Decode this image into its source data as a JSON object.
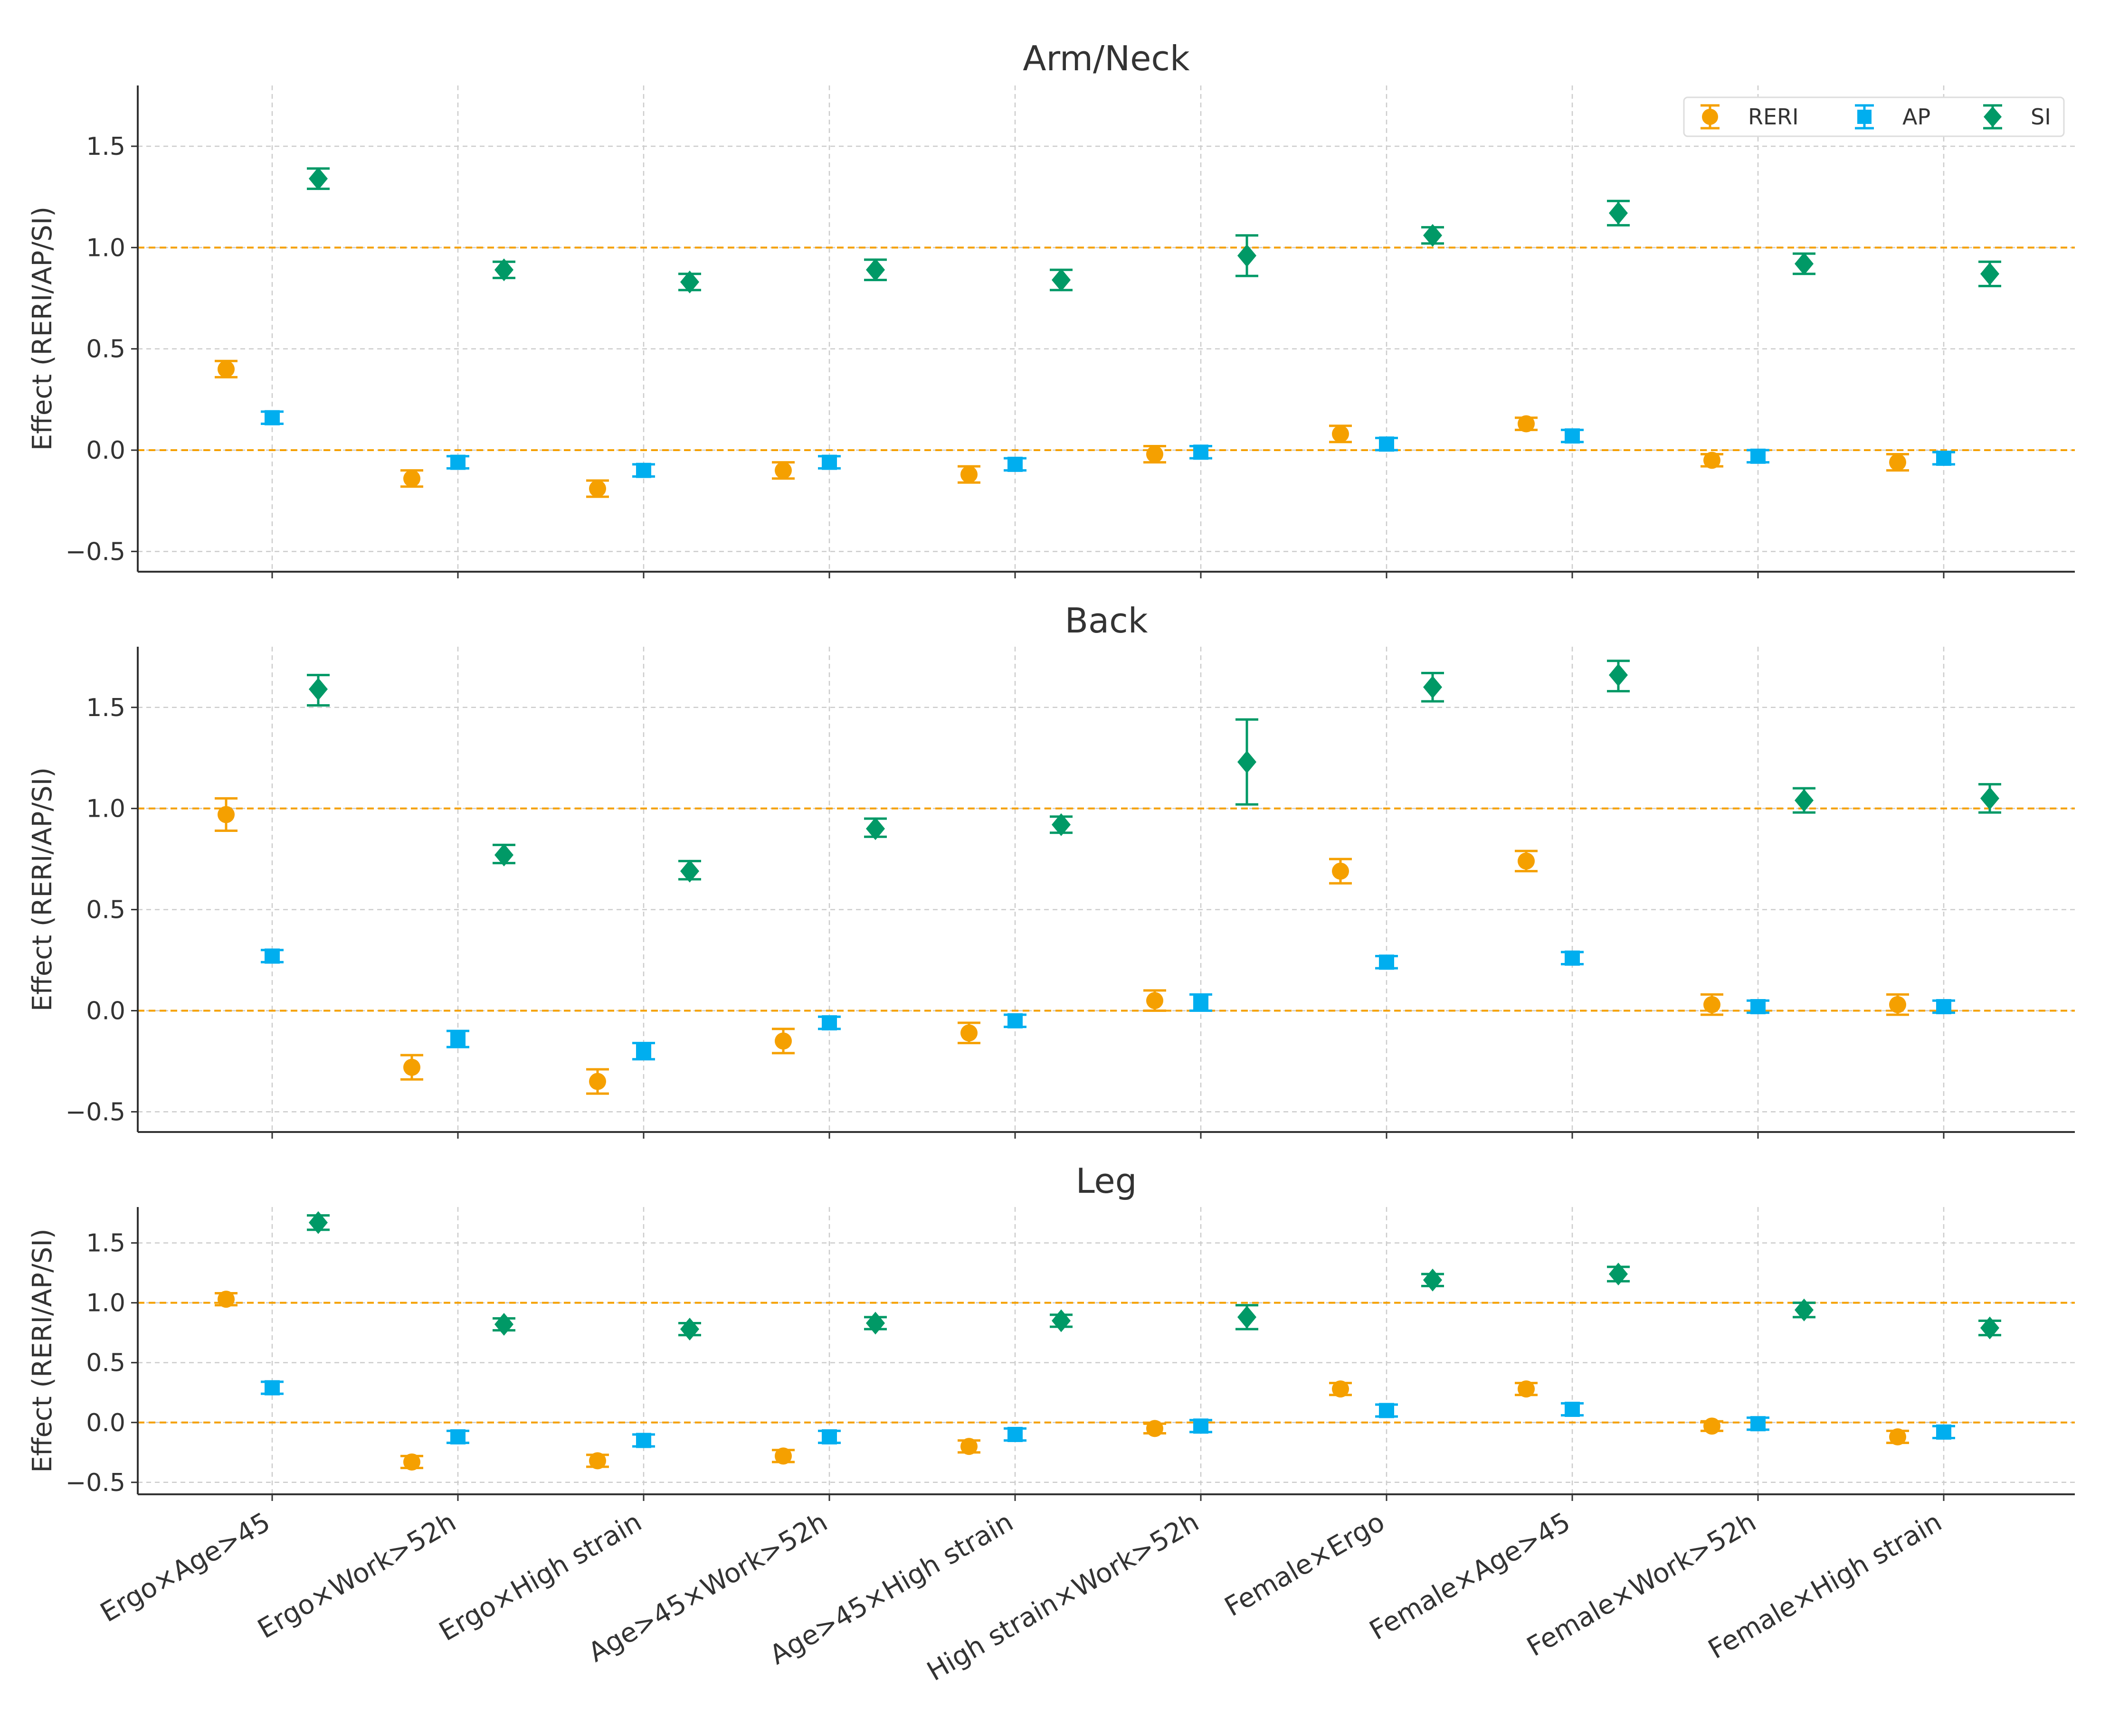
{
  "colors": {
    "RERI": "#F5A000",
    "AP": "#00AEEF",
    "SI": "#009966",
    "reference_line": "#F5A000",
    "grid": "#cccccc",
    "axis": "#333333"
  },
  "chart_data": {
    "type": "errorbar",
    "layout": "three stacked panels sharing x categories",
    "ylabel": "Effect (RERI/AP/SI)",
    "categories": [
      "Ergo×Age>45",
      "Ergo×Work>52h",
      "Ergo×High strain",
      "Age>45×Work>52h",
      "Age>45×High strain",
      "High strain×Work>52h",
      "Female×Ergo",
      "Female×Age>45",
      "Female×Work>52h",
      "Female×High strain"
    ],
    "reference_lines": [
      0.0,
      1.0
    ],
    "legend": {
      "placement": "top-right of first panel",
      "entries": [
        {
          "name": "RERI",
          "marker": "circle"
        },
        {
          "name": "AP",
          "marker": "square"
        },
        {
          "name": "SI",
          "marker": "diamond"
        }
      ]
    },
    "panels": [
      {
        "title": "Arm/Neck",
        "ylim": [
          -0.6,
          1.8
        ],
        "yticks": [
          -0.5,
          0.0,
          0.5,
          1.0,
          1.5
        ],
        "ytick_labels": [
          "−0.5",
          "0.0",
          "0.5",
          "1.0",
          "1.5"
        ],
        "series": [
          {
            "name": "RERI",
            "values": [
              0.4,
              -0.14,
              -0.19,
              -0.1,
              -0.12,
              -0.02,
              0.08,
              0.13,
              -0.05,
              -0.06
            ],
            "lower": [
              0.36,
              -0.18,
              -0.23,
              -0.14,
              -0.16,
              -0.06,
              0.04,
              0.1,
              -0.08,
              -0.1
            ],
            "upper": [
              0.44,
              -0.1,
              -0.15,
              -0.06,
              -0.08,
              0.02,
              0.12,
              0.16,
              -0.02,
              -0.02
            ]
          },
          {
            "name": "AP",
            "values": [
              0.16,
              -0.06,
              -0.1,
              -0.06,
              -0.07,
              -0.01,
              0.03,
              0.07,
              -0.03,
              -0.04
            ],
            "lower": [
              0.13,
              -0.09,
              -0.13,
              -0.09,
              -0.1,
              -0.04,
              0.0,
              0.04,
              -0.06,
              -0.07
            ],
            "upper": [
              0.19,
              -0.03,
              -0.07,
              -0.03,
              -0.04,
              0.02,
              0.06,
              0.1,
              0.0,
              -0.01
            ]
          },
          {
            "name": "SI",
            "values": [
              1.34,
              0.89,
              0.83,
              0.89,
              0.84,
              0.96,
              1.06,
              1.17,
              0.92,
              0.87
            ],
            "lower": [
              1.29,
              0.85,
              0.79,
              0.84,
              0.79,
              0.86,
              1.02,
              1.11,
              0.87,
              0.81
            ],
            "upper": [
              1.39,
              0.93,
              0.87,
              0.94,
              0.89,
              1.06,
              1.1,
              1.23,
              0.97,
              0.93
            ]
          }
        ]
      },
      {
        "title": "Back",
        "ylim": [
          -0.6,
          1.8
        ],
        "yticks": [
          -0.5,
          0.0,
          0.5,
          1.0,
          1.5
        ],
        "ytick_labels": [
          "−0.5",
          "0.0",
          "0.5",
          "1.0",
          "1.5"
        ],
        "series": [
          {
            "name": "RERI",
            "values": [
              0.97,
              -0.28,
              -0.35,
              -0.15,
              -0.11,
              0.05,
              0.69,
              0.74,
              0.03,
              0.03
            ],
            "lower": [
              0.89,
              -0.34,
              -0.41,
              -0.21,
              -0.16,
              0.0,
              0.63,
              0.69,
              -0.02,
              -0.02
            ],
            "upper": [
              1.05,
              -0.22,
              -0.29,
              -0.09,
              -0.06,
              0.1,
              0.75,
              0.79,
              0.08,
              0.08
            ]
          },
          {
            "name": "AP",
            "values": [
              0.27,
              -0.14,
              -0.2,
              -0.06,
              -0.05,
              0.04,
              0.24,
              0.26,
              0.02,
              0.02
            ],
            "lower": [
              0.24,
              -0.18,
              -0.24,
              -0.09,
              -0.08,
              0.0,
              0.21,
              0.23,
              -0.01,
              -0.01
            ],
            "upper": [
              0.3,
              -0.1,
              -0.16,
              -0.03,
              -0.02,
              0.08,
              0.27,
              0.29,
              0.05,
              0.05
            ]
          },
          {
            "name": "SI",
            "values": [
              1.59,
              0.77,
              0.69,
              0.9,
              0.92,
              1.23,
              1.6,
              1.66,
              1.04,
              1.05
            ],
            "lower": [
              1.51,
              0.73,
              0.65,
              0.86,
              0.88,
              1.02,
              1.53,
              1.58,
              0.98,
              0.98
            ],
            "upper": [
              1.66,
              0.82,
              0.74,
              0.95,
              0.96,
              1.44,
              1.67,
              1.73,
              1.1,
              1.12
            ]
          }
        ]
      },
      {
        "title": "Leg",
        "ylim": [
          -0.6,
          1.8
        ],
        "yticks": [
          -0.5,
          0.0,
          0.5,
          1.0,
          1.5
        ],
        "ytick_labels": [
          "−0.5",
          "0.0",
          "0.5",
          "1.0",
          "1.5"
        ],
        "series": [
          {
            "name": "RERI",
            "values": [
              1.03,
              -0.33,
              -0.32,
              -0.28,
              -0.2,
              -0.05,
              0.28,
              0.28,
              -0.03,
              -0.12
            ],
            "lower": [
              0.98,
              -0.38,
              -0.37,
              -0.33,
              -0.25,
              -0.09,
              0.23,
              0.23,
              -0.07,
              -0.17
            ],
            "upper": [
              1.08,
              -0.28,
              -0.27,
              -0.23,
              -0.15,
              -0.01,
              0.33,
              0.33,
              0.01,
              -0.07
            ]
          },
          {
            "name": "AP",
            "values": [
              0.29,
              -0.12,
              -0.15,
              -0.12,
              -0.1,
              -0.03,
              0.1,
              0.11,
              -0.01,
              -0.08
            ],
            "lower": [
              0.24,
              -0.17,
              -0.2,
              -0.17,
              -0.15,
              -0.08,
              0.05,
              0.06,
              -0.06,
              -0.13
            ],
            "upper": [
              0.34,
              -0.07,
              -0.1,
              -0.07,
              -0.05,
              0.02,
              0.15,
              0.16,
              0.04,
              -0.03
            ]
          },
          {
            "name": "SI",
            "values": [
              1.67,
              0.82,
              0.78,
              0.83,
              0.85,
              0.88,
              1.19,
              1.24,
              0.94,
              0.79
            ],
            "lower": [
              1.61,
              0.77,
              0.73,
              0.78,
              0.8,
              0.78,
              1.14,
              1.18,
              0.88,
              0.73
            ],
            "upper": [
              1.73,
              0.87,
              0.83,
              0.88,
              0.9,
              0.98,
              1.24,
              1.3,
              1.0,
              0.85
            ]
          }
        ]
      }
    ]
  }
}
